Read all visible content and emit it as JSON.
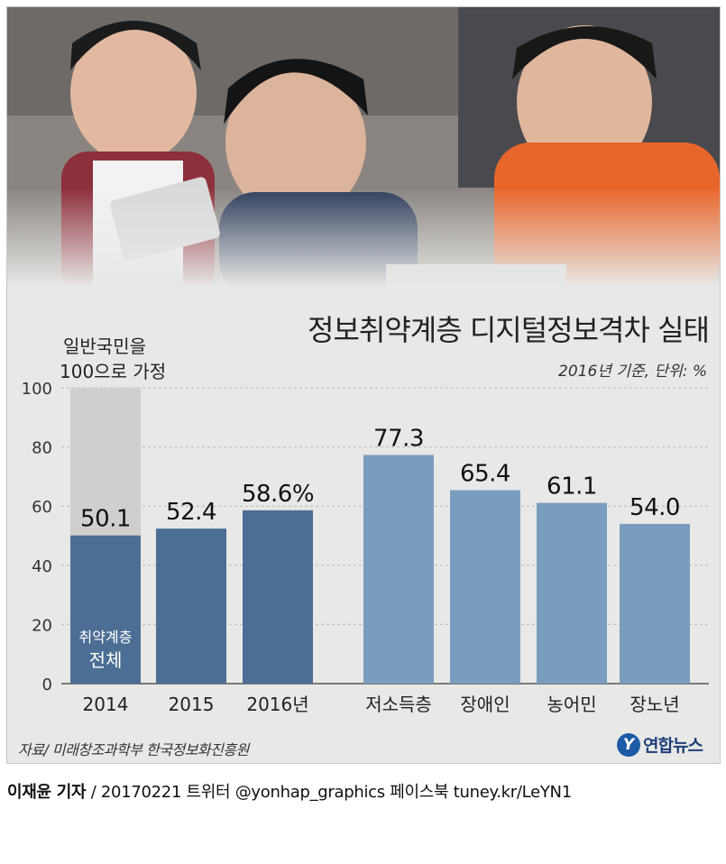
{
  "chart_data": {
    "type": "bar",
    "title": "정보취약계층 디지털정보격차 실태",
    "subtitle": "2016년 기준, 단위: %",
    "ylim": [
      0,
      100
    ],
    "yticks": [
      0,
      20,
      40,
      60,
      80,
      100
    ],
    "grid": true,
    "baseline_note": [
      "일반국민을",
      "100으로 가정"
    ],
    "group_label": [
      "취약계층",
      "전체"
    ],
    "categories": [
      "2014",
      "2015",
      "2016년",
      "저소득층",
      "장애인",
      "농어민",
      "장노년"
    ],
    "values": [
      50.1,
      52.4,
      58.6,
      77.3,
      65.4,
      61.1,
      54.0
    ],
    "value_labels": [
      "50.1",
      "52.4",
      "58.6%",
      "77.3",
      "65.4",
      "61.1",
      "54.0"
    ],
    "colors": {
      "total": "#4c6e95",
      "group": "#7a9dbf",
      "baseline": "#cfcfcd"
    }
  },
  "source": "자료/ 미래창조과학부 한국정보화진흥원",
  "logo": {
    "mark": "Y",
    "text": "연합뉴스"
  },
  "credit": {
    "author": "이재윤 기자",
    "rest": " / 20170221   트위터 @yonhap_graphics  페이스북 tuney.kr/LeYN1"
  }
}
